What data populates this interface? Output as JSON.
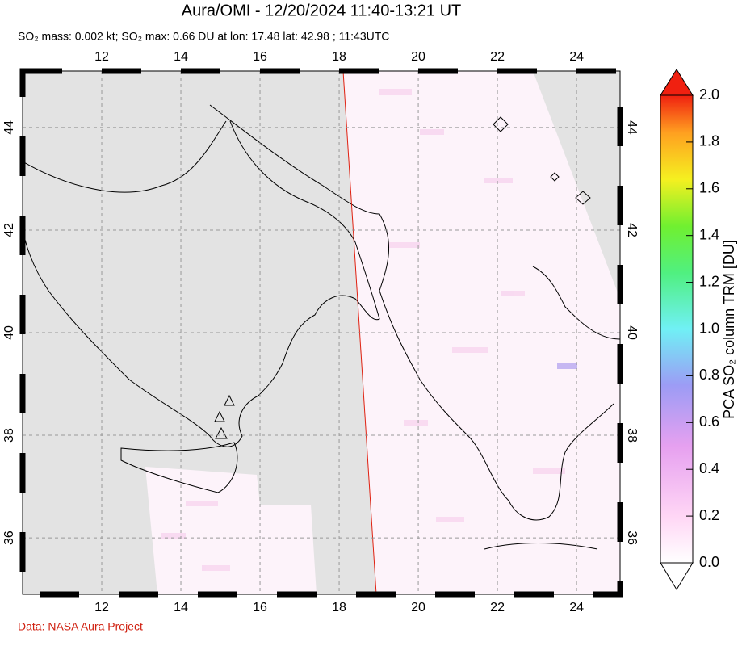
{
  "header": {
    "title": "Aura/OMI - 12/20/2024 11:40-13:21 UT",
    "subtitle": "SO₂ mass: 0.002 kt; SO₂ max: 0.66 DU at lon: 17.48 lat: 42.98 ; 11:43UTC"
  },
  "map": {
    "xlim": [
      10,
      25.1
    ],
    "ylim": [
      34.9,
      45.1
    ],
    "lon_ticks": [
      12,
      14,
      16,
      18,
      20,
      22,
      24
    ],
    "lat_ticks": [
      36,
      38,
      40,
      42,
      44
    ],
    "grid": true
  },
  "colorbar": {
    "label": "PCA SO₂ column TRM [DU]",
    "lim": [
      0,
      2
    ],
    "ticks": [
      {
        "value": 0,
        "label": "0.0"
      },
      {
        "value": 0.2,
        "label": "0.2"
      },
      {
        "value": 0.4,
        "label": "0.4"
      },
      {
        "value": 0.6,
        "label": "0.6"
      },
      {
        "value": 0.8,
        "label": "0.8"
      },
      {
        "value": 1,
        "label": "1.0"
      },
      {
        "value": 1.2,
        "label": "1.2"
      },
      {
        "value": 1.4,
        "label": "1.4"
      },
      {
        "value": 1.6,
        "label": "1.6"
      },
      {
        "value": 1.8,
        "label": "1.8"
      },
      {
        "value": 2,
        "label": "2.0"
      }
    ]
  },
  "footer": {
    "source": "Data: NASA Aura Project"
  }
}
